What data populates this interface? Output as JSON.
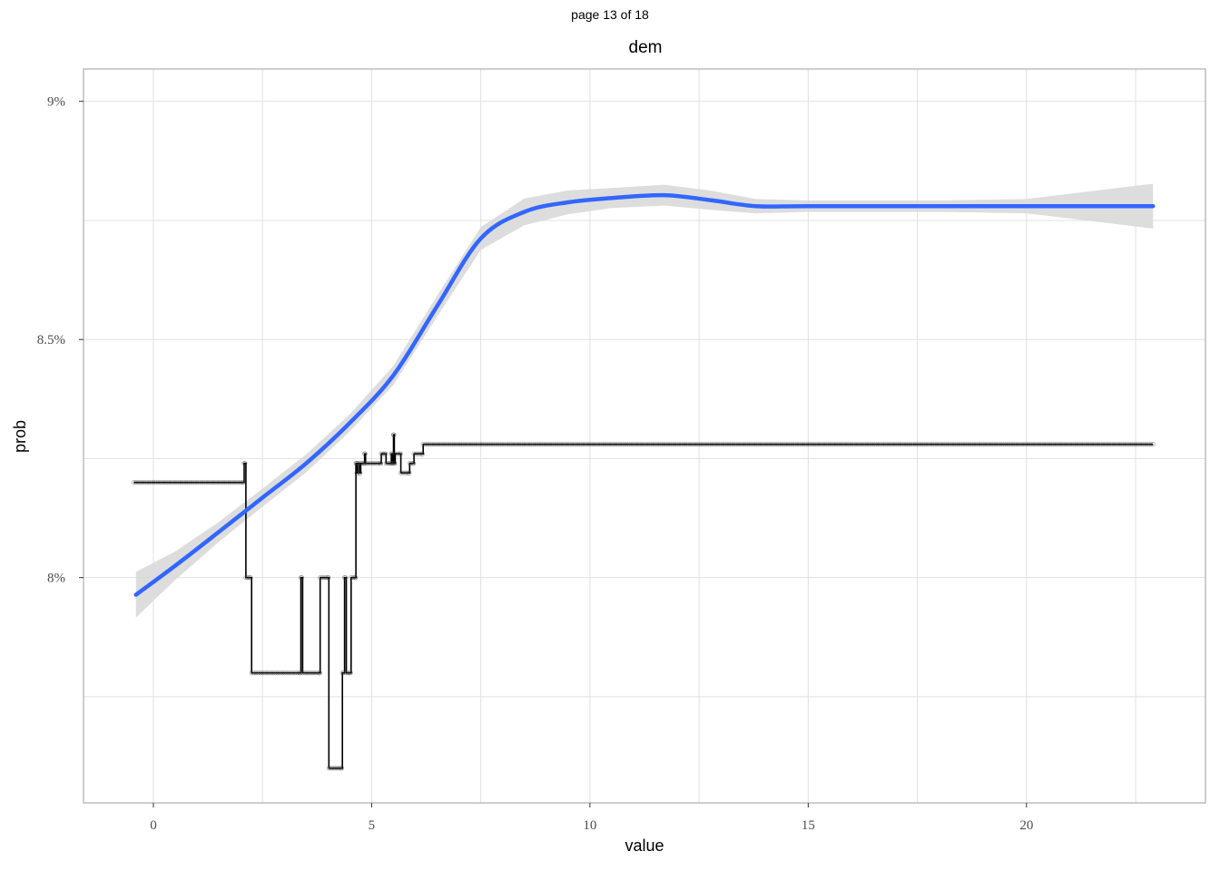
{
  "page_label": "page 13 of 18",
  "chart_data": {
    "type": "line",
    "title": "dem",
    "xlabel": "value",
    "ylabel": "prob",
    "xlim": [
      -1.6,
      24.1
    ],
    "ylim": [
      0.07527,
      0.09068
    ],
    "x_ticks": [
      0,
      5,
      10,
      15,
      20
    ],
    "x_tick_labels": [
      "0",
      "5",
      "10",
      "15",
      "20"
    ],
    "y_ticks": [
      0.08,
      0.085,
      0.09
    ],
    "y_tick_labels": [
      "8%",
      "8.5%",
      "9%"
    ],
    "grid": true,
    "colors": {
      "step": "#000000",
      "smooth": "#3366ff",
      "ribbon": "#d9d9d9",
      "grid": "#e0e0e0",
      "frame": "#b3b3b3"
    },
    "series": [
      {
        "kind": "step",
        "points": [
          [
            -0.45,
            0.082
          ],
          [
            2.05,
            0.082
          ],
          [
            2.08,
            0.0824
          ],
          [
            2.12,
            0.08
          ],
          [
            2.2,
            0.08
          ],
          [
            2.25,
            0.078
          ],
          [
            3.35,
            0.078
          ],
          [
            3.38,
            0.08
          ],
          [
            3.42,
            0.078
          ],
          [
            3.8,
            0.078
          ],
          [
            3.82,
            0.08
          ],
          [
            4.0,
            0.08
          ],
          [
            4.02,
            0.076
          ],
          [
            4.3,
            0.076
          ],
          [
            4.33,
            0.078
          ],
          [
            4.38,
            0.08
          ],
          [
            4.42,
            0.078
          ],
          [
            4.5,
            0.078
          ],
          [
            4.53,
            0.08
          ],
          [
            4.62,
            0.08
          ],
          [
            4.64,
            0.0824
          ],
          [
            4.66,
            0.0822
          ],
          [
            4.68,
            0.0824
          ],
          [
            4.72,
            0.0822
          ],
          [
            4.75,
            0.0824
          ],
          [
            4.82,
            0.0824
          ],
          [
            4.84,
            0.0826
          ],
          [
            4.86,
            0.0824
          ],
          [
            5.2,
            0.0824
          ],
          [
            5.22,
            0.0826
          ],
          [
            5.3,
            0.0826
          ],
          [
            5.33,
            0.0824
          ],
          [
            5.42,
            0.0824
          ],
          [
            5.45,
            0.0826
          ],
          [
            5.47,
            0.0824
          ],
          [
            5.5,
            0.083
          ],
          [
            5.52,
            0.0824
          ],
          [
            5.54,
            0.0826
          ],
          [
            5.65,
            0.0826
          ],
          [
            5.67,
            0.0822
          ],
          [
            5.85,
            0.0822
          ],
          [
            5.87,
            0.0824
          ],
          [
            5.95,
            0.0824
          ],
          [
            5.97,
            0.0826
          ],
          [
            6.15,
            0.0826
          ],
          [
            6.18,
            0.0828
          ],
          [
            22.9,
            0.0828
          ]
        ]
      },
      {
        "kind": "smooth",
        "points": [
          [
            -0.4,
            0.07964
          ],
          [
            0.5,
            0.08025
          ],
          [
            1.5,
            0.08096
          ],
          [
            2.5,
            0.08168
          ],
          [
            3.5,
            0.0824
          ],
          [
            4.5,
            0.08325
          ],
          [
            5.5,
            0.08425
          ],
          [
            6.5,
            0.0857
          ],
          [
            7.5,
            0.08712
          ],
          [
            8.5,
            0.08768
          ],
          [
            9.5,
            0.08788
          ],
          [
            10.5,
            0.08797
          ],
          [
            11.7,
            0.08803
          ],
          [
            12.8,
            0.08792
          ],
          [
            13.8,
            0.0878
          ],
          [
            15.0,
            0.0878
          ],
          [
            18.0,
            0.0878
          ],
          [
            22.9,
            0.0878
          ]
        ]
      },
      {
        "kind": "ribbon",
        "upper": [
          [
            -0.4,
            0.08012
          ],
          [
            0.5,
            0.08055
          ],
          [
            1.5,
            0.08117
          ],
          [
            2.5,
            0.08187
          ],
          [
            3.5,
            0.08259
          ],
          [
            4.5,
            0.08343
          ],
          [
            5.5,
            0.08445
          ],
          [
            6.5,
            0.08592
          ],
          [
            7.5,
            0.08736
          ],
          [
            8.5,
            0.08796
          ],
          [
            9.5,
            0.08813
          ],
          [
            10.5,
            0.08818
          ],
          [
            11.7,
            0.08825
          ],
          [
            12.8,
            0.08812
          ],
          [
            13.8,
            0.08795
          ],
          [
            15.0,
            0.08792
          ],
          [
            18.0,
            0.08792
          ],
          [
            20.0,
            0.08795
          ],
          [
            22.9,
            0.08827
          ]
        ],
        "lower": [
          [
            -0.4,
            0.07916
          ],
          [
            0.5,
            0.07995
          ],
          [
            1.5,
            0.08075
          ],
          [
            2.5,
            0.08149
          ],
          [
            3.5,
            0.08221
          ],
          [
            4.5,
            0.08307
          ],
          [
            5.5,
            0.08405
          ],
          [
            6.5,
            0.08548
          ],
          [
            7.5,
            0.08688
          ],
          [
            8.5,
            0.0874
          ],
          [
            9.5,
            0.08763
          ],
          [
            10.5,
            0.08776
          ],
          [
            11.7,
            0.08781
          ],
          [
            12.8,
            0.08772
          ],
          [
            13.8,
            0.08765
          ],
          [
            15.0,
            0.08768
          ],
          [
            18.0,
            0.08768
          ],
          [
            20.0,
            0.08765
          ],
          [
            22.9,
            0.08733
          ]
        ]
      }
    ]
  }
}
